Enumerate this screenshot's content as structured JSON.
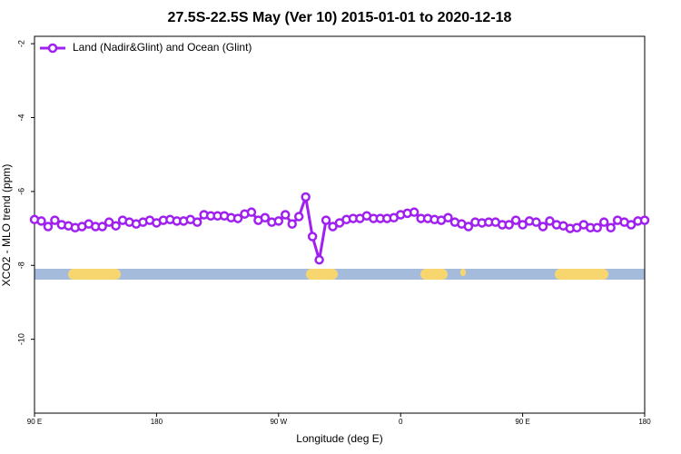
{
  "chart_data": {
    "type": "line",
    "title": "27.5S-22.5S May (Ver 10)   2015-01-01 to 2020-12-18",
    "x_label": "Longitude (deg E)",
    "y_label": "XCO2 - MLO trend (ppm)",
    "xlim": [
      90,
      540
    ],
    "xticks": [
      {
        "value": 90,
        "label": "90 E"
      },
      180,
      {
        "value": 270,
        "label": "90 W"
      },
      {
        "value": 360,
        "label": "0"
      },
      {
        "value": 450,
        "label": "90 E"
      },
      {
        "value": 540,
        "label": "180"
      }
    ],
    "ylim": [
      -12,
      -1.8
    ],
    "yticks": [
      -2,
      -4,
      -6,
      -8,
      -10
    ],
    "legend": "top-left",
    "x": [
      90,
      95,
      100,
      105,
      110,
      115,
      120,
      125,
      130,
      135,
      140,
      145,
      150,
      155,
      160,
      165,
      170,
      175,
      180,
      185,
      190,
      195,
      200,
      205,
      210,
      215,
      220,
      225,
      230,
      235,
      240,
      245,
      250,
      255,
      260,
      265,
      270,
      275,
      280,
      285,
      290,
      295,
      300,
      305,
      310,
      315,
      320,
      325,
      330,
      335,
      340,
      345,
      350,
      355,
      360,
      365,
      370,
      375,
      380,
      385,
      390,
      395,
      400,
      405,
      410,
      415,
      420,
      425,
      430,
      435,
      440,
      445,
      450,
      455,
      460,
      465,
      470,
      475,
      480,
      485,
      490,
      495,
      500,
      505,
      510,
      515,
      520,
      525,
      530,
      535,
      540
    ],
    "series": [
      {
        "name": "Land (Nadir&Glint) and Ocean (Glint)",
        "color": "#a020f0",
        "values": [
          -6.76,
          -6.8,
          -6.95,
          -6.78,
          -6.9,
          -6.93,
          -6.98,
          -6.95,
          -6.88,
          -6.95,
          -6.95,
          -6.83,
          -6.93,
          -6.78,
          -6.83,
          -6.88,
          -6.83,
          -6.78,
          -6.85,
          -6.78,
          -6.76,
          -6.8,
          -6.8,
          -6.76,
          -6.83,
          -6.63,
          -6.66,
          -6.66,
          -6.66,
          -6.71,
          -6.73,
          -6.61,
          -6.56,
          -6.78,
          -6.71,
          -6.83,
          -6.8,
          -6.63,
          -6.88,
          -6.68,
          -6.15,
          -7.22,
          -7.85,
          -6.78,
          -6.95,
          -6.85,
          -6.76,
          -6.73,
          -6.73,
          -6.66,
          -6.73,
          -6.73,
          -6.73,
          -6.71,
          -6.63,
          -6.59,
          -6.56,
          -6.73,
          -6.73,
          -6.76,
          -6.78,
          -6.71,
          -6.83,
          -6.88,
          -6.95,
          -6.83,
          -6.85,
          -6.83,
          -6.83,
          -6.9,
          -6.9,
          -6.78,
          -6.9,
          -6.8,
          -6.83,
          -6.95,
          -6.8,
          -6.9,
          -6.93,
          -7.0,
          -6.98,
          -6.9,
          -6.98,
          -6.98,
          -6.83,
          -6.98,
          -6.78,
          -6.83,
          -6.9,
          -6.8,
          -6.78
        ]
      }
    ]
  }
}
